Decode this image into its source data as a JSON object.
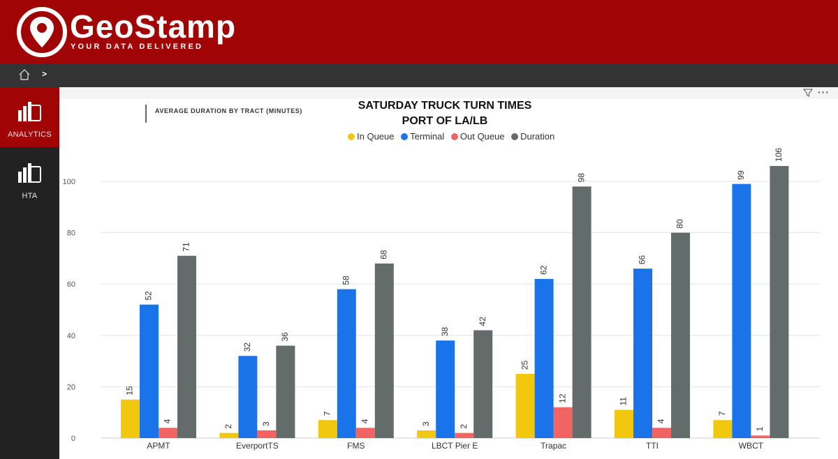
{
  "brand": {
    "name": "GeoStamp",
    "tagline": "YOUR DATA DELIVERED",
    "color": "#a00404"
  },
  "nav": {
    "breadcrumb_separator": ">",
    "home_icon": "home-icon"
  },
  "sidebar": {
    "items": [
      {
        "label": "ANALYTICS",
        "icon": "analytics-icon",
        "active": true
      },
      {
        "label": "HTA",
        "icon": "analytics-icon",
        "active": false
      }
    ]
  },
  "report": {
    "subtitle": "AVERAGE DURATION BY TRACT (MINUTES)",
    "title_line1": "SATURDAY TRUCK TURN TIMES",
    "title_line2": "PORT OF LA/LB",
    "toolbar_icons": [
      "filter-icon",
      "more-options-icon"
    ],
    "more_label": "···"
  },
  "chart_data": {
    "type": "bar",
    "title": "SATURDAY TRUCK TURN TIMES PORT OF LA/LB",
    "categories": [
      "APMT",
      "EverportTS",
      "FMS",
      "LBCT Pier E",
      "Trapac",
      "TTI",
      "WBCT"
    ],
    "series": [
      {
        "name": "In Queue",
        "color": "#f2c80f",
        "values": [
          15,
          2,
          7,
          3,
          25,
          11,
          7
        ]
      },
      {
        "name": "Terminal",
        "color": "#1a73e8",
        "values": [
          52,
          32,
          58,
          38,
          62,
          66,
          99
        ]
      },
      {
        "name": "Out Queue",
        "color": "#f06464",
        "values": [
          4,
          3,
          4,
          2,
          12,
          4,
          1
        ]
      },
      {
        "name": "Duration",
        "color": "#636b6b",
        "values": [
          71,
          36,
          68,
          42,
          98,
          80,
          106
        ]
      }
    ],
    "ylim": [
      0,
      106
    ],
    "yticks": [
      0,
      20,
      40,
      60,
      80,
      100
    ],
    "grid": true,
    "legend_position": "top"
  }
}
